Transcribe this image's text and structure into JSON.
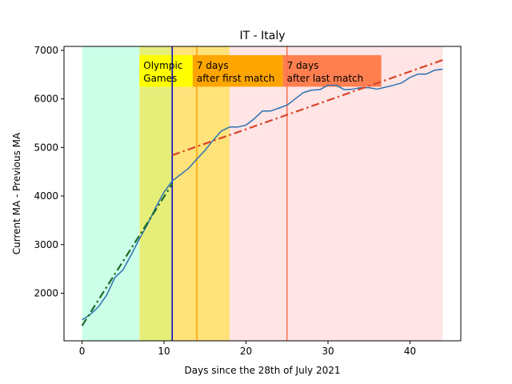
{
  "chart_data": {
    "type": "line",
    "title": "IT - Italy",
    "xlabel": "Days since the 28th of July 2021",
    "ylabel": "Current MA - Previous MA",
    "xlim": [
      -2.2,
      46.2
    ],
    "ylim": [
      1020,
      7080
    ],
    "xticks": [
      0,
      10,
      20,
      30,
      40
    ],
    "yticks": [
      2000,
      3000,
      4000,
      5000,
      6000,
      7000
    ],
    "grid": false,
    "bands": [
      {
        "from": 0,
        "to": 7,
        "color": "#ccffe8"
      },
      {
        "from": 7,
        "to": 11,
        "color": "#e6ee7a"
      },
      {
        "from": 11,
        "to": 18,
        "color": "#ffe27a"
      },
      {
        "from": 18,
        "to": 44,
        "color": "#ffe5e5"
      }
    ],
    "vlines": [
      {
        "x": 11,
        "color": "#0000cc"
      },
      {
        "x": 14,
        "color": "#ffa000"
      },
      {
        "x": 25,
        "color": "#ff7050"
      }
    ],
    "annotations": [
      {
        "text": [
          "Olympic",
          "Games"
        ],
        "x": 7,
        "y": 6900,
        "y_bottom": 6250,
        "x_end": 13.5,
        "color": "#ffff00"
      },
      {
        "text": [
          "7 days",
          "after first match"
        ],
        "x": 13.5,
        "y": 6900,
        "y_bottom": 6250,
        "x_end": 24.5,
        "color": "#ffa500"
      },
      {
        "text": [
          "7 days",
          "after last match"
        ],
        "x": 24.5,
        "y": 6900,
        "y_bottom": 6250,
        "x_end": 36.5,
        "color": "#ff7f50"
      }
    ],
    "series": [
      {
        "style": "solid",
        "color": "#2c72b0",
        "x": [
          0,
          1,
          2,
          3,
          4,
          5,
          6,
          7,
          8,
          9,
          10,
          11,
          12,
          13,
          14,
          15,
          16,
          17,
          18,
          19,
          20,
          21,
          22,
          23,
          24,
          25,
          26,
          27,
          28,
          29,
          30,
          31,
          32,
          33,
          34,
          35,
          36,
          37,
          38,
          39,
          40,
          41,
          42,
          43,
          44
        ],
        "y": [
          1450,
          1560,
          1720,
          1960,
          2320,
          2480,
          2790,
          3120,
          3420,
          3770,
          4080,
          4310,
          4440,
          4570,
          4760,
          4940,
          5150,
          5340,
          5420,
          5420,
          5460,
          5590,
          5750,
          5750,
          5810,
          5870,
          6000,
          6130,
          6180,
          6190,
          6280,
          6280,
          6190,
          6200,
          6230,
          6230,
          6200,
          6240,
          6280,
          6330,
          6440,
          6510,
          6510,
          6590,
          6610
        ]
      },
      {
        "style": "dashdot",
        "color": "#1b6b2a",
        "x": [
          0,
          11
        ],
        "y": [
          1330,
          4250
        ]
      },
      {
        "style": "dashdot",
        "color": "#d9442a",
        "x": [
          11,
          44
        ],
        "y": [
          4840,
          6800
        ]
      }
    ]
  }
}
